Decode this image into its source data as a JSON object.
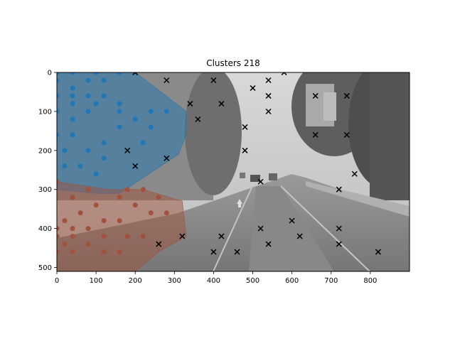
{
  "chart_data": {
    "type": "scatter",
    "title": "Clusters 218",
    "xlabel": "",
    "ylabel": "",
    "xlim": [
      0,
      900
    ],
    "ylim": [
      510,
      0
    ],
    "x_ticks": [
      0,
      100,
      200,
      300,
      400,
      500,
      600,
      700,
      800
    ],
    "y_ticks": [
      0,
      100,
      200,
      300,
      400,
      500
    ],
    "background": "grayscale street scene photo",
    "grid": false,
    "legend": "none",
    "colors": {
      "cluster_blue": "#1f77b4",
      "cluster_red": "#a0523d",
      "noise": "#000000"
    },
    "hulls": [
      {
        "color": "#1f77b4",
        "points": [
          [
            0,
            0
          ],
          [
            200,
            0
          ],
          [
            240,
            30
          ],
          [
            330,
            100
          ],
          [
            330,
            160
          ],
          [
            310,
            210
          ],
          [
            160,
            310
          ],
          [
            100,
            310
          ],
          [
            0,
            300
          ]
        ]
      },
      {
        "color": "#a0523d",
        "points": [
          [
            0,
            280
          ],
          [
            130,
            300
          ],
          [
            220,
            300
          ],
          [
            320,
            330
          ],
          [
            330,
            420
          ],
          [
            260,
            460
          ],
          [
            200,
            510
          ],
          [
            0,
            510
          ]
        ]
      }
    ],
    "series": [
      {
        "marker": "circle",
        "color": "#1f77b4",
        "points": [
          [
            0,
            0
          ],
          [
            40,
            0
          ],
          [
            100,
            0
          ],
          [
            160,
            0
          ],
          [
            0,
            20
          ],
          [
            80,
            20
          ],
          [
            120,
            20
          ],
          [
            40,
            40
          ],
          [
            0,
            60
          ],
          [
            40,
            60
          ],
          [
            80,
            60
          ],
          [
            120,
            60
          ],
          [
            40,
            80
          ],
          [
            100,
            80
          ],
          [
            160,
            80
          ],
          [
            0,
            100
          ],
          [
            80,
            100
          ],
          [
            160,
            100
          ],
          [
            240,
            100
          ],
          [
            280,
            100
          ],
          [
            40,
            120
          ],
          [
            200,
            120
          ],
          [
            160,
            140
          ],
          [
            240,
            140
          ],
          [
            0,
            160
          ],
          [
            40,
            160
          ],
          [
            120,
            180
          ],
          [
            220,
            180
          ],
          [
            20,
            200
          ],
          [
            80,
            200
          ],
          [
            120,
            220
          ],
          [
            20,
            240
          ],
          [
            60,
            240
          ],
          [
            100,
            260
          ]
        ]
      },
      {
        "marker": "circle",
        "color": "#a0523d",
        "points": [
          [
            0,
            280
          ],
          [
            80,
            300
          ],
          [
            180,
            300
          ],
          [
            220,
            300
          ],
          [
            40,
            320
          ],
          [
            160,
            320
          ],
          [
            260,
            320
          ],
          [
            100,
            340
          ],
          [
            200,
            340
          ],
          [
            60,
            360
          ],
          [
            240,
            360
          ],
          [
            280,
            360
          ],
          [
            20,
            380
          ],
          [
            160,
            380
          ],
          [
            120,
            380
          ],
          [
            80,
            400
          ],
          [
            0,
            400
          ],
          [
            40,
            400
          ],
          [
            40,
            420
          ],
          [
            120,
            420
          ],
          [
            180,
            420
          ],
          [
            220,
            420
          ],
          [
            0,
            420
          ],
          [
            80,
            440
          ],
          [
            20,
            440
          ],
          [
            0,
            460
          ],
          [
            40,
            460
          ],
          [
            120,
            460
          ],
          [
            160,
            460
          ]
        ]
      },
      {
        "marker": "x",
        "color": "#000000",
        "points": [
          [
            200,
            0
          ],
          [
            280,
            20
          ],
          [
            400,
            20
          ],
          [
            580,
            0
          ],
          [
            540,
            20
          ],
          [
            500,
            40
          ],
          [
            540,
            60
          ],
          [
            660,
            60
          ],
          [
            740,
            60
          ],
          [
            340,
            80
          ],
          [
            420,
            80
          ],
          [
            540,
            100
          ],
          [
            360,
            120
          ],
          [
            480,
            140
          ],
          [
            660,
            160
          ],
          [
            740,
            160
          ],
          [
            180,
            200
          ],
          [
            480,
            200
          ],
          [
            280,
            220
          ],
          [
            200,
            240
          ],
          [
            760,
            260
          ],
          [
            520,
            280
          ],
          [
            720,
            300
          ],
          [
            600,
            380
          ],
          [
            520,
            400
          ],
          [
            720,
            400
          ],
          [
            320,
            420
          ],
          [
            420,
            420
          ],
          [
            620,
            420
          ],
          [
            260,
            440
          ],
          [
            540,
            440
          ],
          [
            720,
            440
          ],
          [
            400,
            460
          ],
          [
            460,
            460
          ],
          [
            820,
            460
          ]
        ]
      }
    ]
  }
}
